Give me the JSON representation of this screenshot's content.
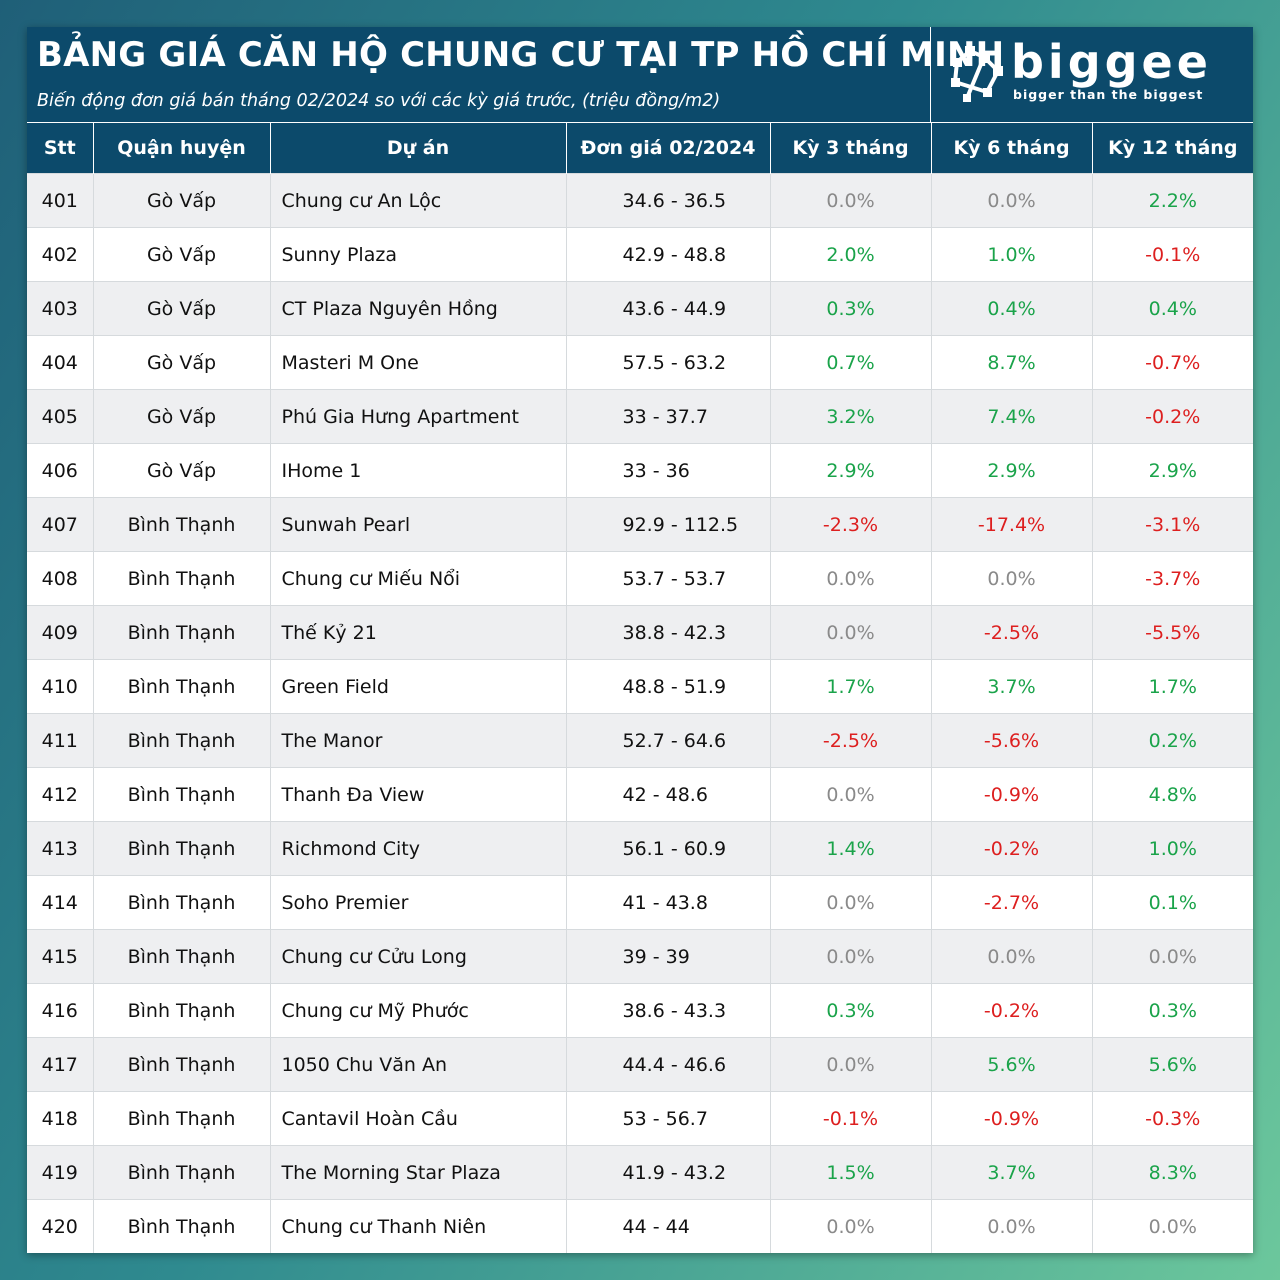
{
  "header": {
    "title": "BẢNG GIÁ CĂN HỘ CHUNG CƯ TẠI TP HỒ CHÍ MINH",
    "subtitle": "Biến động đơn giá bán tháng 02/2024 so với các kỳ giá trước, (triệu đồng/m2)"
  },
  "logo": {
    "name": "biggee",
    "tagline": "bigger than the biggest",
    "icon": "biggee-logo-icon"
  },
  "columns": [
    "Stt",
    "Quận huyện",
    "Dự án",
    "Đơn giá 02/2024",
    "Kỳ 3 tháng",
    "Kỳ 6 tháng",
    "Kỳ 12 tháng"
  ],
  "colors": {
    "header_bg": "#0c4a6b",
    "positive": "#1aa34a",
    "negative": "#dd1f1f",
    "neutral": "#8a8a8a"
  },
  "rows": [
    {
      "stt": "401",
      "district": "Gò Vấp",
      "project": "Chung cư An Lộc",
      "price": "34.6 - 36.5",
      "k3": "0.0%",
      "k6": "0.0%",
      "k12": "2.2%"
    },
    {
      "stt": "402",
      "district": "Gò Vấp",
      "project": "Sunny Plaza",
      "price": "42.9 - 48.8",
      "k3": "2.0%",
      "k6": "1.0%",
      "k12": "-0.1%"
    },
    {
      "stt": "403",
      "district": "Gò Vấp",
      "project": "CT Plaza Nguyên Hồng",
      "price": "43.6 - 44.9",
      "k3": "0.3%",
      "k6": "0.4%",
      "k12": "0.4%"
    },
    {
      "stt": "404",
      "district": "Gò Vấp",
      "project": "Masteri M One",
      "price": "57.5 - 63.2",
      "k3": "0.7%",
      "k6": "8.7%",
      "k12": "-0.7%"
    },
    {
      "stt": "405",
      "district": "Gò Vấp",
      "project": "Phú Gia Hưng Apartment",
      "price": "33 - 37.7",
      "k3": "3.2%",
      "k6": "7.4%",
      "k12": "-0.2%"
    },
    {
      "stt": "406",
      "district": "Gò Vấp",
      "project": "IHome 1",
      "price": "33 - 36",
      "k3": "2.9%",
      "k6": "2.9%",
      "k12": "2.9%"
    },
    {
      "stt": "407",
      "district": "Bình Thạnh",
      "project": "Sunwah Pearl",
      "price": "92.9 - 112.5",
      "k3": "-2.3%",
      "k6": "-17.4%",
      "k12": "-3.1%"
    },
    {
      "stt": "408",
      "district": "Bình Thạnh",
      "project": "Chung cư Miếu Nổi",
      "price": "53.7 - 53.7",
      "k3": "0.0%",
      "k6": "0.0%",
      "k12": "-3.7%"
    },
    {
      "stt": "409",
      "district": "Bình Thạnh",
      "project": "Thế Kỷ 21",
      "price": "38.8 - 42.3",
      "k3": "0.0%",
      "k6": "-2.5%",
      "k12": "-5.5%"
    },
    {
      "stt": "410",
      "district": "Bình Thạnh",
      "project": "Green Field",
      "price": "48.8 - 51.9",
      "k3": "1.7%",
      "k6": "3.7%",
      "k12": "1.7%"
    },
    {
      "stt": "411",
      "district": "Bình Thạnh",
      "project": "The Manor",
      "price": "52.7 - 64.6",
      "k3": "-2.5%",
      "k6": "-5.6%",
      "k12": "0.2%"
    },
    {
      "stt": "412",
      "district": "Bình Thạnh",
      "project": "Thanh Đa View",
      "price": "42 - 48.6",
      "k3": "0.0%",
      "k6": "-0.9%",
      "k12": "4.8%"
    },
    {
      "stt": "413",
      "district": "Bình Thạnh",
      "project": "Richmond City",
      "price": "56.1 - 60.9",
      "k3": "1.4%",
      "k6": "-0.2%",
      "k12": "1.0%"
    },
    {
      "stt": "414",
      "district": "Bình Thạnh",
      "project": "Soho Premier",
      "price": "41 - 43.8",
      "k3": "0.0%",
      "k6": "-2.7%",
      "k12": "0.1%"
    },
    {
      "stt": "415",
      "district": "Bình Thạnh",
      "project": "Chung cư Cửu Long",
      "price": "39 - 39",
      "k3": "0.0%",
      "k6": "0.0%",
      "k12": "0.0%"
    },
    {
      "stt": "416",
      "district": "Bình Thạnh",
      "project": "Chung cư Mỹ Phước",
      "price": "38.6 - 43.3",
      "k3": "0.3%",
      "k6": "-0.2%",
      "k12": "0.3%"
    },
    {
      "stt": "417",
      "district": "Bình Thạnh",
      "project": "1050 Chu Văn An",
      "price": "44.4 - 46.6",
      "k3": "0.0%",
      "k6": "5.6%",
      "k12": "5.6%"
    },
    {
      "stt": "418",
      "district": "Bình Thạnh",
      "project": "Cantavil Hoàn Cầu",
      "price": "53 - 56.7",
      "k3": "-0.1%",
      "k6": "-0.9%",
      "k12": "-0.3%"
    },
    {
      "stt": "419",
      "district": "Bình Thạnh",
      "project": "The Morning Star Plaza",
      "price": "41.9 - 43.2",
      "k3": "1.5%",
      "k6": "3.7%",
      "k12": "8.3%"
    },
    {
      "stt": "420",
      "district": "Bình Thạnh",
      "project": "Chung cư Thanh Niên",
      "price": "44 - 44",
      "k3": "0.0%",
      "k6": "0.0%",
      "k12": "0.0%"
    }
  ]
}
